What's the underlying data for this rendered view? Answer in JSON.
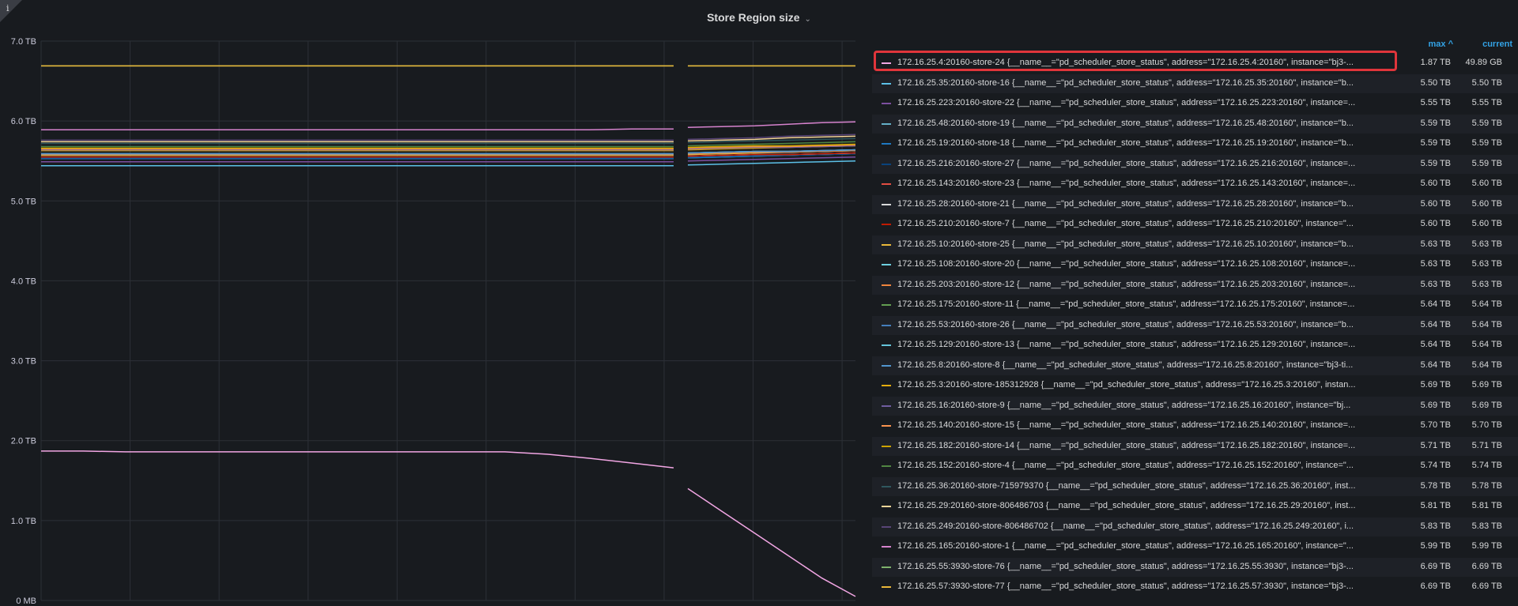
{
  "panel": {
    "title": "Store Region size",
    "info_icon": "info-icon",
    "title_menu_icon": "chevron-down-icon"
  },
  "legend_headers": {
    "max": "max ^",
    "current": "current"
  },
  "chart_data": {
    "type": "line",
    "title": "Store Region size",
    "xlabel": "",
    "ylabel": "",
    "ylim": [
      0,
      7
    ],
    "y_unit": "TB",
    "yticks": [
      "0 MB",
      "1.0 TB",
      "2.0 TB",
      "3.0 TB",
      "4.0 TB",
      "5.0 TB",
      "6.0 TB",
      "7.0 TB"
    ],
    "grid": true,
    "legend_placement": "right",
    "series": [
      {
        "name": "172.16.25.4:20160-store-24 {__name__=\"pd_scheduler_store_status\", address=\"172.16.25.4:20160\", instance=\"bj3-...",
        "color": "#f2a6e4",
        "max": "1.87 TB",
        "current": "49.89 GB",
        "values": [
          1.87,
          1.87,
          1.86,
          1.86,
          1.86,
          1.86,
          1.86,
          1.86,
          1.86,
          1.86,
          1.86,
          1.86,
          1.83,
          1.78,
          1.72,
          1.66,
          null,
          1.4,
          1.12,
          0.84,
          0.56,
          0.28,
          0.05
        ]
      },
      {
        "name": "172.16.25.35:20160-store-16 {__name__=\"pd_scheduler_store_status\", address=\"172.16.25.35:20160\", instance=\"b...",
        "color": "#5cc1e8",
        "max": "5.50 TB",
        "current": "5.50 TB",
        "values": [
          5.44,
          5.44,
          5.44,
          5.44,
          5.44,
          5.44,
          5.44,
          5.44,
          5.44,
          5.44,
          5.44,
          5.44,
          5.44,
          5.44,
          5.44,
          5.44,
          null,
          5.45,
          5.46,
          5.47,
          5.48,
          5.49,
          5.5
        ]
      },
      {
        "name": "172.16.25.223:20160-store-22 {__name__=\"pd_scheduler_store_status\", address=\"172.16.25.223:20160\", instance=...",
        "color": "#7c4fa0",
        "max": "5.55 TB",
        "current": "5.55 TB",
        "values": [
          5.49,
          5.49,
          5.49,
          5.49,
          5.49,
          5.49,
          5.49,
          5.49,
          5.49,
          5.49,
          5.49,
          5.49,
          5.49,
          5.49,
          5.49,
          5.49,
          null,
          5.5,
          5.51,
          5.52,
          5.53,
          5.54,
          5.55
        ]
      },
      {
        "name": "172.16.25.48:20160-store-19 {__name__=\"pd_scheduler_store_status\", address=\"172.16.25.48:20160\", instance=\"b...",
        "color": "#64b0c8",
        "max": "5.59 TB",
        "current": "5.59 TB",
        "values": [
          5.53,
          5.53,
          5.53,
          5.53,
          5.53,
          5.53,
          5.53,
          5.53,
          5.53,
          5.53,
          5.53,
          5.53,
          5.53,
          5.53,
          5.53,
          5.53,
          null,
          5.54,
          5.55,
          5.56,
          5.57,
          5.58,
          5.59
        ]
      },
      {
        "name": "172.16.25.19:20160-store-18 {__name__=\"pd_scheduler_store_status\", address=\"172.16.25.19:20160\", instance=\"b...",
        "color": "#1f78c1",
        "max": "5.59 TB",
        "current": "5.59 TB",
        "values": [
          5.53,
          5.53,
          5.53,
          5.53,
          5.53,
          5.53,
          5.53,
          5.53,
          5.53,
          5.53,
          5.53,
          5.53,
          5.53,
          5.53,
          5.53,
          5.53,
          null,
          5.54,
          5.55,
          5.56,
          5.57,
          5.58,
          5.59
        ]
      },
      {
        "name": "172.16.25.216:20160-store-27 {__name__=\"pd_scheduler_store_status\", address=\"172.16.25.216:20160\", instance=...",
        "color": "#0a437c",
        "max": "5.59 TB",
        "current": "5.59 TB",
        "values": [
          5.54,
          5.54,
          5.54,
          5.54,
          5.54,
          5.54,
          5.54,
          5.54,
          5.54,
          5.54,
          5.54,
          5.54,
          5.54,
          5.54,
          5.54,
          5.54,
          null,
          5.55,
          5.56,
          5.57,
          5.57,
          5.58,
          5.59
        ]
      },
      {
        "name": "172.16.25.143:20160-store-23 {__name__=\"pd_scheduler_store_status\", address=\"172.16.25.143:20160\", instance=...",
        "color": "#e24d42",
        "max": "5.60 TB",
        "current": "5.60 TB",
        "values": [
          5.55,
          5.55,
          5.55,
          5.55,
          5.55,
          5.55,
          5.55,
          5.55,
          5.55,
          5.55,
          5.55,
          5.55,
          5.55,
          5.55,
          5.55,
          5.55,
          null,
          5.56,
          5.57,
          5.58,
          5.58,
          5.59,
          5.6
        ]
      },
      {
        "name": "172.16.25.28:20160-store-21 {__name__=\"pd_scheduler_store_status\", address=\"172.16.25.28:20160\", instance=\"b...",
        "color": "#d8d9da",
        "max": "5.60 TB",
        "current": "5.60 TB",
        "values": [
          5.55,
          5.55,
          5.55,
          5.55,
          5.55,
          5.55,
          5.55,
          5.55,
          5.55,
          5.55,
          5.55,
          5.55,
          5.55,
          5.55,
          5.55,
          5.55,
          null,
          5.56,
          5.57,
          5.58,
          5.58,
          5.59,
          5.6
        ]
      },
      {
        "name": "172.16.25.210:20160-store-7 {__name__=\"pd_scheduler_store_status\", address=\"172.16.25.210:20160\", instance=\"...",
        "color": "#bf1b00",
        "max": "5.60 TB",
        "current": "5.60 TB",
        "values": [
          5.55,
          5.55,
          5.55,
          5.55,
          5.55,
          5.55,
          5.55,
          5.55,
          5.55,
          5.55,
          5.55,
          5.55,
          5.55,
          5.55,
          5.55,
          5.55,
          null,
          5.56,
          5.57,
          5.58,
          5.58,
          5.59,
          5.6
        ]
      },
      {
        "name": "172.16.25.10:20160-store-25 {__name__=\"pd_scheduler_store_status\", address=\"172.16.25.10:20160\", instance=\"b...",
        "color": "#eab839",
        "max": "5.63 TB",
        "current": "5.63 TB",
        "values": [
          5.57,
          5.57,
          5.57,
          5.57,
          5.57,
          5.57,
          5.57,
          5.57,
          5.57,
          5.57,
          5.57,
          5.57,
          5.57,
          5.57,
          5.57,
          5.57,
          null,
          5.58,
          5.59,
          5.6,
          5.61,
          5.62,
          5.63
        ]
      },
      {
        "name": "172.16.25.108:20160-store-20 {__name__=\"pd_scheduler_store_status\", address=\"172.16.25.108:20160\", instance=...",
        "color": "#6ed0e0",
        "max": "5.63 TB",
        "current": "5.63 TB",
        "values": [
          5.58,
          5.58,
          5.58,
          5.58,
          5.58,
          5.58,
          5.58,
          5.58,
          5.58,
          5.58,
          5.58,
          5.58,
          5.58,
          5.58,
          5.58,
          5.58,
          null,
          5.59,
          5.6,
          5.61,
          5.61,
          5.62,
          5.63
        ]
      },
      {
        "name": "172.16.25.203:20160-store-12 {__name__=\"pd_scheduler_store_status\", address=\"172.16.25.203:20160\", instance=...",
        "color": "#ef843c",
        "max": "5.63 TB",
        "current": "5.63 TB",
        "values": [
          5.58,
          5.58,
          5.58,
          5.58,
          5.58,
          5.58,
          5.58,
          5.58,
          5.58,
          5.58,
          5.58,
          5.58,
          5.58,
          5.58,
          5.58,
          5.58,
          null,
          5.59,
          5.6,
          5.61,
          5.61,
          5.62,
          5.63
        ]
      },
      {
        "name": "172.16.25.175:20160-store-11 {__name__=\"pd_scheduler_store_status\", address=\"172.16.25.175:20160\", instance=...",
        "color": "#629e51",
        "max": "5.64 TB",
        "current": "5.64 TB",
        "values": [
          5.59,
          5.59,
          5.59,
          5.59,
          5.59,
          5.59,
          5.59,
          5.59,
          5.59,
          5.59,
          5.59,
          5.59,
          5.59,
          5.59,
          5.59,
          5.59,
          null,
          5.6,
          5.61,
          5.62,
          5.62,
          5.63,
          5.64
        ]
      },
      {
        "name": "172.16.25.53:20160-store-26 {__name__=\"pd_scheduler_store_status\", address=\"172.16.25.53:20160\", instance=\"b...",
        "color": "#447ebc",
        "max": "5.64 TB",
        "current": "5.64 TB",
        "values": [
          5.59,
          5.59,
          5.59,
          5.59,
          5.59,
          5.59,
          5.59,
          5.59,
          5.59,
          5.59,
          5.59,
          5.59,
          5.59,
          5.59,
          5.59,
          5.59,
          null,
          5.6,
          5.61,
          5.62,
          5.62,
          5.63,
          5.64
        ]
      },
      {
        "name": "172.16.25.129:20160-store-13 {__name__=\"pd_scheduler_store_status\", address=\"172.16.25.129:20160\", instance=...",
        "color": "#65c5db",
        "max": "5.64 TB",
        "current": "5.64 TB",
        "values": [
          5.59,
          5.59,
          5.59,
          5.59,
          5.59,
          5.59,
          5.59,
          5.59,
          5.59,
          5.59,
          5.59,
          5.59,
          5.59,
          5.59,
          5.59,
          5.59,
          null,
          5.6,
          5.61,
          5.62,
          5.62,
          5.63,
          5.64
        ]
      },
      {
        "name": "172.16.25.8:20160-store-8 {__name__=\"pd_scheduler_store_status\", address=\"172.16.25.8:20160\", instance=\"bj3-ti...",
        "color": "#5195ce",
        "max": "5.64 TB",
        "current": "5.64 TB",
        "values": [
          5.59,
          5.59,
          5.59,
          5.59,
          5.59,
          5.59,
          5.59,
          5.59,
          5.59,
          5.59,
          5.59,
          5.59,
          5.59,
          5.59,
          5.59,
          5.59,
          null,
          5.6,
          5.61,
          5.62,
          5.62,
          5.63,
          5.64
        ]
      },
      {
        "name": "172.16.25.3:20160-store-185312928 {__name__=\"pd_scheduler_store_status\", address=\"172.16.25.3:20160\", instan...",
        "color": "#e5ac0e",
        "max": "5.69 TB",
        "current": "5.69 TB",
        "values": [
          5.63,
          5.63,
          5.63,
          5.63,
          5.63,
          5.63,
          5.63,
          5.63,
          5.63,
          5.63,
          5.63,
          5.63,
          5.63,
          5.63,
          5.63,
          5.63,
          null,
          5.64,
          5.65,
          5.66,
          5.67,
          5.68,
          5.69
        ]
      },
      {
        "name": "172.16.25.16:20160-store-9 {__name__=\"pd_scheduler_store_status\", address=\"172.16.25.16:20160\", instance=\"bj...",
        "color": "#705da0",
        "max": "5.69 TB",
        "current": "5.69 TB",
        "values": [
          5.64,
          5.64,
          5.64,
          5.64,
          5.64,
          5.64,
          5.64,
          5.64,
          5.64,
          5.64,
          5.64,
          5.64,
          5.64,
          5.64,
          5.64,
          5.64,
          null,
          5.65,
          5.66,
          5.67,
          5.67,
          5.68,
          5.69
        ]
      },
      {
        "name": "172.16.25.140:20160-store-15 {__name__=\"pd_scheduler_store_status\", address=\"172.16.25.140:20160\", instance=...",
        "color": "#f9934e",
        "max": "5.70 TB",
        "current": "5.70 TB",
        "values": [
          5.65,
          5.65,
          5.65,
          5.65,
          5.65,
          5.65,
          5.65,
          5.65,
          5.65,
          5.65,
          5.65,
          5.65,
          5.65,
          5.65,
          5.65,
          5.65,
          null,
          5.66,
          5.67,
          5.68,
          5.68,
          5.69,
          5.7
        ]
      },
      {
        "name": "172.16.25.182:20160-store-14 {__name__=\"pd_scheduler_store_status\", address=\"172.16.25.182:20160\", instance=...",
        "color": "#cca300",
        "max": "5.71 TB",
        "current": "5.71 TB",
        "values": [
          5.66,
          5.66,
          5.66,
          5.66,
          5.66,
          5.66,
          5.66,
          5.66,
          5.66,
          5.66,
          5.66,
          5.66,
          5.66,
          5.66,
          5.66,
          5.66,
          null,
          5.67,
          5.68,
          5.69,
          5.69,
          5.7,
          5.71
        ]
      },
      {
        "name": "172.16.25.152:20160-store-4 {__name__=\"pd_scheduler_store_status\", address=\"172.16.25.152:20160\", instance=\"...",
        "color": "#508642",
        "max": "5.74 TB",
        "current": "5.74 TB",
        "values": [
          5.68,
          5.68,
          5.68,
          5.68,
          5.68,
          5.68,
          5.68,
          5.68,
          5.68,
          5.68,
          5.68,
          5.68,
          5.68,
          5.68,
          5.68,
          5.68,
          null,
          5.69,
          5.7,
          5.71,
          5.72,
          5.73,
          5.74
        ]
      },
      {
        "name": "172.16.25.36:20160-store-715979370 {__name__=\"pd_scheduler_store_status\", address=\"172.16.25.36:20160\", inst...",
        "color": "#2f575e",
        "max": "5.78 TB",
        "current": "5.78 TB",
        "values": [
          5.72,
          5.72,
          5.72,
          5.72,
          5.72,
          5.72,
          5.72,
          5.72,
          5.72,
          5.72,
          5.72,
          5.72,
          5.72,
          5.72,
          5.72,
          5.72,
          null,
          5.73,
          5.74,
          5.75,
          5.76,
          5.77,
          5.78
        ]
      },
      {
        "name": "172.16.25.29:20160-store-806486703 {__name__=\"pd_scheduler_store_status\", address=\"172.16.25.29:20160\", inst...",
        "color": "#f4d598",
        "max": "5.81 TB",
        "current": "5.81 TB",
        "values": [
          5.74,
          5.74,
          5.74,
          5.74,
          5.74,
          5.74,
          5.74,
          5.74,
          5.74,
          5.74,
          5.74,
          5.74,
          5.74,
          5.74,
          5.74,
          5.74,
          null,
          5.75,
          5.76,
          5.77,
          5.79,
          5.8,
          5.81
        ]
      },
      {
        "name": "172.16.25.249:20160-store-806486702 {__name__=\"pd_scheduler_store_status\", address=\"172.16.25.249:20160\", i...",
        "color": "#584477",
        "max": "5.83 TB",
        "current": "5.83 TB",
        "values": [
          5.76,
          5.76,
          5.76,
          5.76,
          5.76,
          5.76,
          5.76,
          5.76,
          5.76,
          5.76,
          5.76,
          5.76,
          5.76,
          5.76,
          5.76,
          5.76,
          null,
          5.77,
          5.78,
          5.79,
          5.81,
          5.82,
          5.83
        ]
      },
      {
        "name": "172.16.25.165:20160-store-1 {__name__=\"pd_scheduler_store_status\", address=\"172.16.25.165:20160\", instance=\"...",
        "color": "#d683ce",
        "max": "5.99 TB",
        "current": "5.99 TB",
        "values": [
          5.89,
          5.89,
          5.89,
          5.89,
          5.89,
          5.89,
          5.89,
          5.89,
          5.89,
          5.89,
          5.89,
          5.89,
          5.89,
          5.89,
          5.9,
          5.9,
          null,
          5.92,
          5.93,
          5.94,
          5.96,
          5.98,
          5.99
        ]
      },
      {
        "name": "172.16.25.55:3930-store-76 {__name__=\"pd_scheduler_store_status\", address=\"172.16.25.55:3930\", instance=\"bj3-...",
        "color": "#7eb26d",
        "max": "6.69 TB",
        "current": "6.69 TB",
        "values": [
          6.69,
          6.69,
          6.69,
          6.69,
          6.69,
          6.69,
          6.69,
          6.69,
          6.69,
          6.69,
          6.69,
          6.69,
          6.69,
          6.69,
          6.69,
          6.69,
          null,
          6.69,
          6.69,
          6.69,
          6.69,
          6.69,
          6.69
        ]
      },
      {
        "name": "172.16.25.57:3930-store-77 {__name__=\"pd_scheduler_store_status\", address=\"172.16.25.57:3930\", instance=\"bj3-...",
        "color": "#eab839",
        "max": "6.69 TB",
        "current": "6.69 TB",
        "values": [
          6.69,
          6.69,
          6.69,
          6.69,
          6.69,
          6.69,
          6.69,
          6.69,
          6.69,
          6.69,
          6.69,
          6.69,
          6.69,
          6.69,
          6.69,
          6.69,
          null,
          6.69,
          6.69,
          6.69,
          6.69,
          6.69,
          6.69
        ]
      }
    ]
  }
}
